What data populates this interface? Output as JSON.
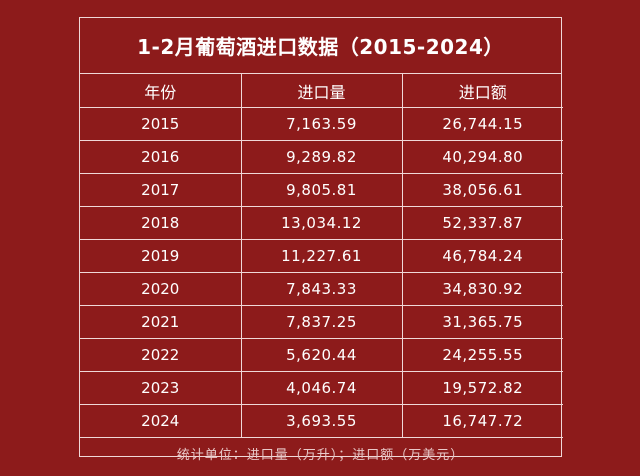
{
  "chart_data": {
    "type": "table",
    "title": "1-2月葡萄酒进口数据（2015-2024）",
    "columns": [
      "年份",
      "进口量",
      "进口额"
    ],
    "rows": [
      [
        "2015",
        "7,163.59",
        "26,744.15"
      ],
      [
        "2016",
        "9,289.82",
        "40,294.80"
      ],
      [
        "2017",
        "9,805.81",
        "38,056.61"
      ],
      [
        "2018",
        "13,034.12",
        "52,337.87"
      ],
      [
        "2019",
        "11,227.61",
        "46,784.24"
      ],
      [
        "2020",
        "7,843.33",
        "34,830.92"
      ],
      [
        "2021",
        "7,837.25",
        "31,365.75"
      ],
      [
        "2022",
        "5,620.44",
        "24,255.55"
      ],
      [
        "2023",
        "4,046.74",
        "19,572.82"
      ],
      [
        "2024",
        "3,693.55",
        "16,747.72"
      ]
    ],
    "footnote": "统计单位：进口量（万升）；进口额（万美元）"
  },
  "colors": {
    "background": "#8d1b1b",
    "text": "#ffffff",
    "border": "#f0d8d8"
  }
}
